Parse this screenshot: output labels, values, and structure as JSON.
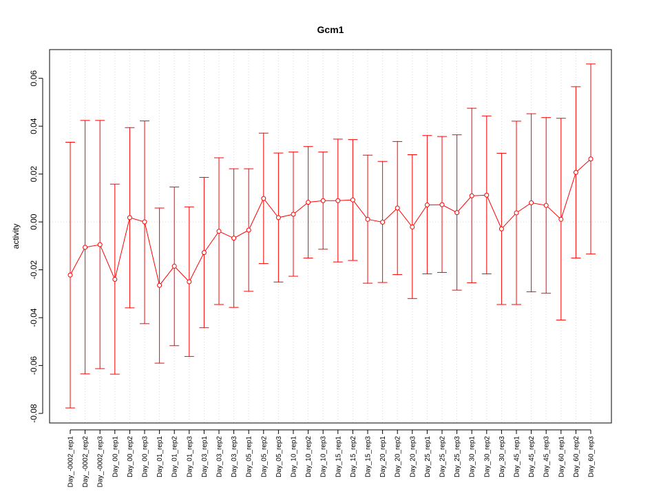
{
  "chart_data": {
    "type": "line",
    "title": "Gcm1",
    "xlabel": "",
    "ylabel": "activity",
    "ylim": [
      -0.084,
      0.072
    ],
    "yticks": [
      "-0.08",
      "-0.06",
      "-0.04",
      "-0.02",
      "0.00",
      "0.02",
      "0.04",
      "0.06"
    ],
    "ytick_values": [
      -0.08,
      -0.06,
      -0.04,
      -0.02,
      0.0,
      0.02,
      0.04,
      0.06
    ],
    "grid": true,
    "series_color": "#ff0000",
    "grid_color": "#d3d3d3",
    "categories": [
      "Day_-0002_rep1",
      "Day_-0002_rep2",
      "Day_-0002_rep3",
      "Day_00_rep1",
      "Day_00_rep2",
      "Day_00_rep3",
      "Day_01_rep1",
      "Day_01_rep2",
      "Day_01_rep3",
      "Day_03_rep1",
      "Day_03_rep2",
      "Day_03_rep3",
      "Day_05_rep1",
      "Day_05_rep2",
      "Day_05_rep3",
      "Day_10_rep1",
      "Day_10_rep2",
      "Day_10_rep3",
      "Day_15_rep1",
      "Day_15_rep2",
      "Day_15_rep3",
      "Day_20_rep1",
      "Day_20_rep2",
      "Day_20_rep3",
      "Day_25_rep1",
      "Day_25_rep2",
      "Day_25_rep3",
      "Day_30_rep1",
      "Day_30_rep2",
      "Day_30_rep3",
      "Day_45_rep1",
      "Day_45_rep2",
      "Day_45_rep3",
      "Day_60_rep1",
      "Day_60_rep2",
      "Day_60_rep3"
    ],
    "values": [
      -0.0222,
      -0.0106,
      -0.0095,
      -0.024,
      0.0018,
      0.0,
      -0.0265,
      -0.0185,
      -0.025,
      -0.0128,
      -0.0039,
      -0.0068,
      -0.0034,
      0.0098,
      0.0018,
      0.0032,
      0.0082,
      0.0089,
      0.0089,
      0.0092,
      0.0011,
      -0.0001,
      0.0058,
      -0.0021,
      0.0071,
      0.0072,
      0.0039,
      0.0109,
      0.0112,
      -0.0029,
      0.0038,
      0.008,
      0.0069,
      0.0011,
      0.0207,
      0.0263
    ],
    "upper": [
      0.0333,
      0.0424,
      0.0424,
      0.0158,
      0.0394,
      0.0422,
      0.0058,
      0.0146,
      0.0063,
      0.0186,
      0.0268,
      0.0222,
      0.0222,
      0.0371,
      0.0288,
      0.0292,
      0.0315,
      0.0292,
      0.0346,
      0.0344,
      0.0279,
      0.0253,
      0.0336,
      0.0281,
      0.0361,
      0.0357,
      0.0364,
      0.0475,
      0.0443,
      0.0287,
      0.0421,
      0.0452,
      0.0436,
      0.0433,
      0.0565,
      0.066
    ],
    "lower": [
      -0.0777,
      -0.0635,
      -0.0613,
      -0.0636,
      -0.0359,
      -0.0425,
      -0.059,
      -0.0517,
      -0.0562,
      -0.0442,
      -0.0345,
      -0.0357,
      -0.029,
      -0.0174,
      -0.0251,
      -0.0227,
      -0.0151,
      -0.0114,
      -0.0167,
      -0.0161,
      -0.0256,
      -0.0253,
      -0.022,
      -0.032,
      -0.0217,
      -0.0211,
      -0.0285,
      -0.0254,
      -0.0217,
      -0.0345,
      -0.0345,
      -0.0292,
      -0.0298,
      -0.041,
      -0.0151,
      -0.0134
    ]
  }
}
